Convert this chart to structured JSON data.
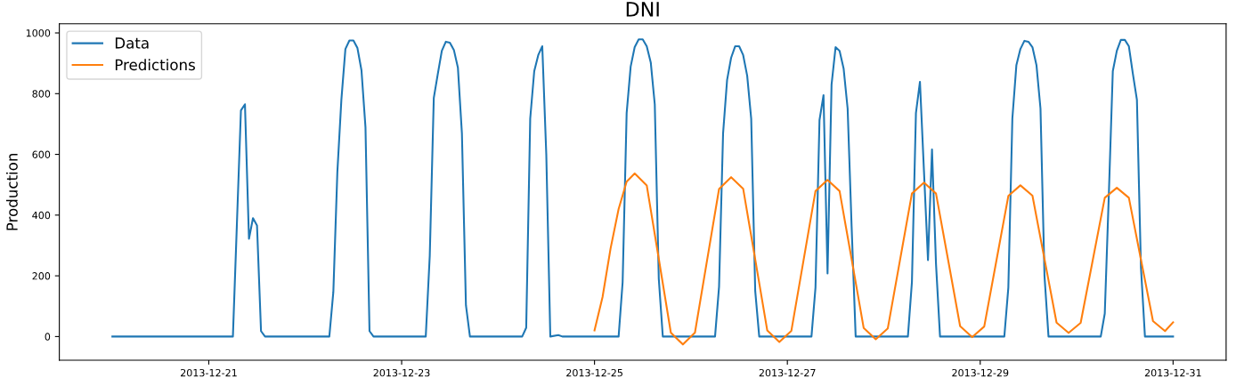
{
  "chart_data": {
    "type": "line",
    "title": "DNI",
    "ylabel": "Production",
    "xlim": [
      "2013-12-19T10:48",
      "2013-12-31T13:12"
    ],
    "xticks": [
      "2013-12-21",
      "2013-12-23",
      "2013-12-25",
      "2013-12-27",
      "2013-12-29",
      "2013-12-31"
    ],
    "ylim": [
      -78,
      1030
    ],
    "yticks": [
      0,
      200,
      400,
      600,
      800,
      1000
    ],
    "grid": false,
    "legend": "top left",
    "marker": "none",
    "line_style": "solid",
    "series": [
      {
        "name": "Data",
        "color": "#1f77b4",
        "x": [
          "2013-12-20T00:00",
          "2013-12-21T06:00",
          "2013-12-21T08:00",
          "2013-12-21T09:00",
          "2013-12-21T10:00",
          "2013-12-21T11:00",
          "2013-12-21T12:00",
          "2013-12-21T13:00",
          "2013-12-21T14:00",
          "2013-12-22T06:00",
          "2013-12-22T07:00",
          "2013-12-22T08:00",
          "2013-12-22T09:00",
          "2013-12-22T10:00",
          "2013-12-22T11:00",
          "2013-12-22T12:00",
          "2013-12-22T13:00",
          "2013-12-22T14:00",
          "2013-12-22T15:00",
          "2013-12-22T16:00",
          "2013-12-22T17:00",
          "2013-12-23T06:00",
          "2013-12-23T07:00",
          "2013-12-23T08:00",
          "2013-12-23T09:00",
          "2013-12-23T10:00",
          "2013-12-23T11:00",
          "2013-12-23T12:00",
          "2013-12-23T13:00",
          "2013-12-23T14:00",
          "2013-12-23T15:00",
          "2013-12-23T16:00",
          "2013-12-23T17:00",
          "2013-12-24T06:00",
          "2013-12-24T07:00",
          "2013-12-24T08:00",
          "2013-12-24T09:00",
          "2013-12-24T10:00",
          "2013-12-24T11:00",
          "2013-12-24T12:00",
          "2013-12-24T13:00",
          "2013-12-24T15:00",
          "2013-12-24T16:00",
          "2013-12-25T06:00",
          "2013-12-25T07:00",
          "2013-12-25T08:00",
          "2013-12-25T09:00",
          "2013-12-25T10:00",
          "2013-12-25T11:00",
          "2013-12-25T12:00",
          "2013-12-25T13:00",
          "2013-12-25T14:00",
          "2013-12-25T15:00",
          "2013-12-25T16:00",
          "2013-12-25T17:00",
          "2013-12-26T06:00",
          "2013-12-26T07:00",
          "2013-12-26T08:00",
          "2013-12-26T09:00",
          "2013-12-26T10:00",
          "2013-12-26T11:00",
          "2013-12-26T12:00",
          "2013-12-26T13:00",
          "2013-12-26T14:00",
          "2013-12-26T15:00",
          "2013-12-26T16:00",
          "2013-12-26T17:00",
          "2013-12-27T06:00",
          "2013-12-27T07:00",
          "2013-12-27T08:00",
          "2013-12-27T09:00",
          "2013-12-27T10:00",
          "2013-12-27T11:00",
          "2013-12-27T12:00",
          "2013-12-27T13:00",
          "2013-12-27T14:00",
          "2013-12-27T15:00",
          "2013-12-27T16:00",
          "2013-12-27T17:00",
          "2013-12-28T06:00",
          "2013-12-28T07:00",
          "2013-12-28T08:00",
          "2013-12-28T09:00",
          "2013-12-28T10:00",
          "2013-12-28T11:00",
          "2013-12-28T12:00",
          "2013-12-28T13:00",
          "2013-12-28T14:00",
          "2013-12-29T06:00",
          "2013-12-29T07:00",
          "2013-12-29T08:00",
          "2013-12-29T09:00",
          "2013-12-29T10:00",
          "2013-12-29T11:00",
          "2013-12-29T12:00",
          "2013-12-29T13:00",
          "2013-12-29T14:00",
          "2013-12-29T15:00",
          "2013-12-29T16:00",
          "2013-12-29T17:00",
          "2013-12-30T06:00",
          "2013-12-30T07:00",
          "2013-12-30T08:00",
          "2013-12-30T09:00",
          "2013-12-30T10:00",
          "2013-12-30T11:00",
          "2013-12-30T12:00",
          "2013-12-30T13:00",
          "2013-12-30T14:00",
          "2013-12-30T15:00",
          "2013-12-30T16:00",
          "2013-12-30T17:00",
          "2013-12-31T00:00"
        ],
        "values": [
          0,
          0,
          745,
          765,
          322,
          390,
          366,
          18,
          0,
          0,
          147,
          542,
          780,
          947,
          975,
          975,
          950,
          877,
          689,
          18,
          0,
          0,
          267,
          786,
          865,
          941,
          971,
          968,
          944,
          886,
          669,
          103,
          0,
          0,
          29,
          718,
          874,
          927,
          956,
          600,
          0,
          5,
          0,
          0,
          179,
          736,
          889,
          953,
          979,
          979,
          956,
          903,
          765,
          190,
          0,
          0,
          164,
          669,
          845,
          918,
          956,
          956,
          927,
          859,
          718,
          150,
          0,
          0,
          161,
          713,
          795,
          208,
          830,
          953,
          941,
          883,
          751,
          360,
          0,
          0,
          179,
          736,
          839,
          545,
          252,
          616,
          238,
          0,
          0,
          161,
          718,
          894,
          947,
          974,
          971,
          953,
          894,
          751,
          199,
          0,
          0,
          76,
          463,
          874,
          941,
          977,
          977,
          956,
          865,
          780,
          229,
          0,
          0
        ]
      },
      {
        "name": "Predictions",
        "color": "#ff7f0e",
        "x": [
          "2013-12-25T00:00",
          "2013-12-25T02:00",
          "2013-12-25T04:00",
          "2013-12-25T06:00",
          "2013-12-25T08:00",
          "2013-12-25T10:00",
          "2013-12-25T13:00",
          "2013-12-25T16:00",
          "2013-12-25T19:00",
          "2013-12-25T22:00",
          "2013-12-26T01:00",
          "2013-12-26T04:00",
          "2013-12-26T07:00",
          "2013-12-26T10:00",
          "2013-12-26T13:00",
          "2013-12-26T16:00",
          "2013-12-26T19:00",
          "2013-12-26T22:00",
          "2013-12-27T01:00",
          "2013-12-27T04:00",
          "2013-12-27T07:00",
          "2013-12-27T10:00",
          "2013-12-27T13:00",
          "2013-12-27T16:00",
          "2013-12-27T19:00",
          "2013-12-27T22:00",
          "2013-12-28T01:00",
          "2013-12-28T04:00",
          "2013-12-28T07:00",
          "2013-12-28T10:00",
          "2013-12-28T13:00",
          "2013-12-28T16:00",
          "2013-12-28T19:00",
          "2013-12-28T22:00",
          "2013-12-29T01:00",
          "2013-12-29T04:00",
          "2013-12-29T07:00",
          "2013-12-29T10:00",
          "2013-12-29T13:00",
          "2013-12-29T16:00",
          "2013-12-29T19:00",
          "2013-12-29T22:00",
          "2013-12-30T01:00",
          "2013-12-30T04:00",
          "2013-12-30T07:00",
          "2013-12-30T10:00",
          "2013-12-30T13:00",
          "2013-12-30T16:00",
          "2013-12-30T19:00",
          "2013-12-30T22:00",
          "2013-12-31T00:00"
        ],
        "values": [
          20,
          130,
          290,
          420,
          510,
          537,
          498,
          256,
          13,
          -26,
          13,
          250,
          486,
          525,
          487,
          254,
          20,
          -18,
          19,
          249,
          479,
          516,
          479,
          254,
          28,
          -9,
          27,
          249,
          471,
          507,
          471,
          253,
          34,
          -2,
          33,
          248,
          463,
          498,
          464,
          255,
          46,
          12,
          45,
          251,
          457,
          490,
          457,
          254,
          51,
          18,
          47
        ]
      }
    ]
  }
}
